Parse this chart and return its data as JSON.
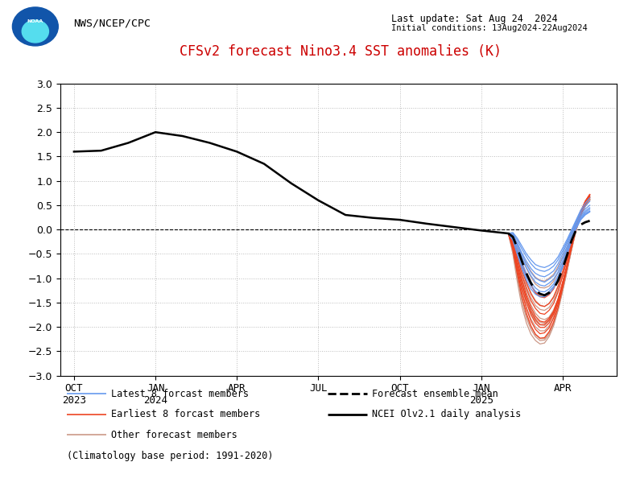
{
  "title": "CFSv2 forecast Nino3.4 SST anomalies (K)",
  "title_color": "#cc0000",
  "header_left": "NWS/NCEP/CPC",
  "header_right_line1": "Last update: Sat Aug 24  2024",
  "header_right_line2": "Initial conditions: 13Aug2024-22Aug2024",
  "footer": "(Climatology base period: 1991-2020)",
  "ylim": [
    -3,
    3
  ],
  "yticks": [
    -3,
    -2.5,
    -2,
    -1.5,
    -1,
    -0.5,
    0,
    0.5,
    1,
    1.5,
    2,
    2.5,
    3
  ],
  "background_color": "#ffffff",
  "grid_color": "#bbbbbb",
  "analysis_color": "#000000",
  "ensemble_mean_color": "#000000",
  "latest8_color": "#6699ee",
  "earliest8_color": "#ee4422",
  "other_color": "#cc9988",
  "analysis_y": [
    1.6,
    1.62,
    1.78,
    2.0,
    1.92,
    1.78,
    1.6,
    1.35,
    0.95,
    0.6,
    0.3,
    0.24,
    0.2,
    0.12,
    0.05,
    -0.02,
    -0.08
  ],
  "ensemble_mean_y": [
    -0.08,
    -0.15,
    -0.38,
    -0.65,
    -0.9,
    -1.1,
    -1.25,
    -1.32,
    -1.35,
    -1.3,
    -1.22,
    -1.05,
    -0.8,
    -0.52,
    -0.22,
    0.0,
    0.1,
    0.15,
    0.18
  ],
  "latest8_members": [
    [
      -0.08,
      -0.12,
      -0.3,
      -0.52,
      -0.72,
      -0.88,
      -1.0,
      -1.05,
      -1.08,
      -1.02,
      -0.95,
      -0.8,
      -0.58,
      -0.35,
      -0.1,
      0.12,
      0.28,
      0.38,
      0.45
    ],
    [
      -0.08,
      -0.1,
      -0.28,
      -0.48,
      -0.65,
      -0.8,
      -0.9,
      -0.95,
      -0.97,
      -0.92,
      -0.85,
      -0.7,
      -0.5,
      -0.28,
      -0.05,
      0.15,
      0.32,
      0.42,
      0.5
    ],
    [
      -0.08,
      -0.14,
      -0.35,
      -0.58,
      -0.78,
      -0.95,
      -1.08,
      -1.14,
      -1.16,
      -1.1,
      -1.02,
      -0.87,
      -0.65,
      -0.4,
      -0.15,
      0.08,
      0.25,
      0.35,
      0.42
    ],
    [
      -0.08,
      -0.18,
      -0.42,
      -0.68,
      -0.9,
      -1.08,
      -1.2,
      -1.27,
      -1.28,
      -1.22,
      -1.12,
      -0.95,
      -0.72,
      -0.46,
      -0.2,
      0.05,
      0.22,
      0.32,
      0.38
    ],
    [
      -0.08,
      -0.08,
      -0.22,
      -0.4,
      -0.56,
      -0.7,
      -0.8,
      -0.84,
      -0.86,
      -0.82,
      -0.75,
      -0.62,
      -0.44,
      -0.24,
      -0.04,
      0.18,
      0.36,
      0.48,
      0.58
    ],
    [
      -0.08,
      -0.2,
      -0.48,
      -0.75,
      -0.98,
      -1.15,
      -1.27,
      -1.33,
      -1.34,
      -1.27,
      -1.17,
      -1.0,
      -0.76,
      -0.5,
      -0.22,
      0.02,
      0.2,
      0.3,
      0.36
    ],
    [
      -0.08,
      -0.06,
      -0.18,
      -0.34,
      -0.5,
      -0.62,
      -0.72,
      -0.76,
      -0.78,
      -0.74,
      -0.68,
      -0.56,
      -0.38,
      -0.2,
      0.0,
      0.2,
      0.4,
      0.54,
      0.65
    ],
    [
      -0.08,
      -0.22,
      -0.52,
      -0.8,
      -1.04,
      -1.22,
      -1.33,
      -1.38,
      -1.38,
      -1.32,
      -1.2,
      -1.02,
      -0.78,
      -0.5,
      -0.22,
      0.05,
      0.22,
      0.32,
      0.38
    ]
  ],
  "earliest8_members": [
    [
      -0.08,
      -0.28,
      -0.65,
      -1.02,
      -1.35,
      -1.6,
      -1.78,
      -1.88,
      -1.9,
      -1.82,
      -1.68,
      -1.42,
      -1.08,
      -0.72,
      -0.35,
      0.02,
      0.3,
      0.52,
      0.65
    ],
    [
      -0.08,
      -0.32,
      -0.72,
      -1.1,
      -1.42,
      -1.68,
      -1.85,
      -1.95,
      -1.95,
      -1.86,
      -1.7,
      -1.44,
      -1.1,
      -0.72,
      -0.34,
      0.04,
      0.32,
      0.54,
      0.68
    ],
    [
      -0.08,
      -0.25,
      -0.58,
      -0.92,
      -1.22,
      -1.46,
      -1.62,
      -1.72,
      -1.74,
      -1.66,
      -1.52,
      -1.28,
      -0.96,
      -0.62,
      -0.28,
      0.06,
      0.32,
      0.52,
      0.65
    ],
    [
      -0.08,
      -0.35,
      -0.78,
      -1.18,
      -1.5,
      -1.75,
      -1.92,
      -2.01,
      -2.01,
      -1.92,
      -1.74,
      -1.47,
      -1.12,
      -0.74,
      -0.34,
      0.05,
      0.34,
      0.56,
      0.7
    ],
    [
      -0.08,
      -0.38,
      -0.85,
      -1.28,
      -1.62,
      -1.88,
      -2.05,
      -2.14,
      -2.12,
      -2.02,
      -1.82,
      -1.53,
      -1.16,
      -0.76,
      -0.35,
      0.05,
      0.35,
      0.58,
      0.72
    ],
    [
      -0.08,
      -0.22,
      -0.52,
      -0.82,
      -1.1,
      -1.32,
      -1.48,
      -1.56,
      -1.58,
      -1.52,
      -1.38,
      -1.16,
      -0.86,
      -0.55,
      -0.22,
      0.1,
      0.35,
      0.55,
      0.68
    ],
    [
      -0.08,
      -0.42,
      -0.92,
      -1.38,
      -1.72,
      -1.98,
      -2.15,
      -2.23,
      -2.22,
      -2.1,
      -1.9,
      -1.6,
      -1.2,
      -0.78,
      -0.36,
      0.05,
      0.35,
      0.58,
      0.72
    ],
    [
      -0.08,
      -0.18,
      -0.45,
      -0.72,
      -0.96,
      -1.15,
      -1.3,
      -1.38,
      -1.4,
      -1.34,
      -1.22,
      -1.02,
      -0.76,
      -0.48,
      -0.18,
      0.12,
      0.38,
      0.58,
      0.72
    ]
  ],
  "other_members": [
    [
      -0.08,
      -0.28,
      -0.65,
      -1.0,
      -1.3,
      -1.55,
      -1.72,
      -1.82,
      -1.85,
      -1.8,
      -1.65,
      -1.42,
      -1.1,
      -0.75,
      -0.38,
      0.0,
      0.28,
      0.48,
      0.62
    ],
    [
      -0.08,
      -0.32,
      -0.72,
      -1.1,
      -1.42,
      -1.65,
      -1.82,
      -1.9,
      -1.92,
      -1.85,
      -1.7,
      -1.45,
      -1.12,
      -0.76,
      -0.38,
      0.0,
      0.28,
      0.48,
      0.62
    ],
    [
      -0.08,
      -0.22,
      -0.52,
      -0.82,
      -1.08,
      -1.3,
      -1.46,
      -1.55,
      -1.58,
      -1.52,
      -1.4,
      -1.18,
      -0.9,
      -0.6,
      -0.28,
      0.06,
      0.3,
      0.5,
      0.62
    ],
    [
      -0.08,
      -0.35,
      -0.78,
      -1.18,
      -1.5,
      -1.72,
      -1.88,
      -1.96,
      -1.97,
      -1.88,
      -1.72,
      -1.46,
      -1.12,
      -0.75,
      -0.36,
      0.02,
      0.3,
      0.5,
      0.62
    ],
    [
      -0.08,
      -0.38,
      -0.85,
      -1.28,
      -1.6,
      -1.84,
      -2.0,
      -2.08,
      -2.08,
      -1.98,
      -1.8,
      -1.52,
      -1.16,
      -0.78,
      -0.38,
      0.0,
      0.28,
      0.48,
      0.6
    ],
    [
      -0.08,
      -0.42,
      -0.95,
      -1.42,
      -1.76,
      -2.0,
      -2.16,
      -2.24,
      -2.24,
      -2.12,
      -1.92,
      -1.62,
      -1.24,
      -0.82,
      -0.4,
      0.0,
      0.28,
      0.48,
      0.6
    ],
    [
      -0.08,
      -0.18,
      -0.42,
      -0.68,
      -0.92,
      -1.12,
      -1.28,
      -1.36,
      -1.38,
      -1.32,
      -1.2,
      -1.0,
      -0.75,
      -0.48,
      -0.18,
      0.12,
      0.35,
      0.52,
      0.65
    ],
    [
      -0.08,
      -0.25,
      -0.58,
      -0.9,
      -1.18,
      -1.4,
      -1.56,
      -1.64,
      -1.66,
      -1.6,
      -1.46,
      -1.24,
      -0.94,
      -0.62,
      -0.28,
      0.06,
      0.32,
      0.5,
      0.62
    ],
    [
      -0.08,
      -0.45,
      -1.0,
      -1.48,
      -1.82,
      -2.05,
      -2.2,
      -2.28,
      -2.27,
      -2.16,
      -1.95,
      -1.64,
      -1.25,
      -0.84,
      -0.4,
      0.0,
      0.28,
      0.48,
      0.6
    ],
    [
      -0.08,
      -0.15,
      -0.38,
      -0.6,
      -0.8,
      -0.98,
      -1.12,
      -1.19,
      -1.2,
      -1.16,
      -1.06,
      -0.88,
      -0.66,
      -0.42,
      -0.15,
      0.12,
      0.35,
      0.52,
      0.65
    ],
    [
      -0.08,
      -0.5,
      -1.08,
      -1.58,
      -1.92,
      -2.15,
      -2.28,
      -2.35,
      -2.33,
      -2.2,
      -1.98,
      -1.66,
      -1.27,
      -0.85,
      -0.4,
      0.0,
      0.28,
      0.48,
      0.6
    ],
    [
      -0.08,
      -0.12,
      -0.32,
      -0.52,
      -0.7,
      -0.86,
      -0.98,
      -1.04,
      -1.06,
      -1.0,
      -0.92,
      -0.76,
      -0.56,
      -0.35,
      -0.1,
      0.15,
      0.38,
      0.55,
      0.68
    ]
  ],
  "xtick_labels": [
    "OCT\n2023",
    "JAN\n2024",
    "APR",
    "JUL",
    "OCT",
    "JAN\n2025",
    "APR"
  ],
  "xtick_positions": [
    0,
    3,
    6,
    9,
    12,
    15,
    18
  ],
  "xlim": [
    -0.5,
    20
  ],
  "analysis_x_end": 16,
  "forecast_x_start": 16,
  "forecast_x_end": 19
}
